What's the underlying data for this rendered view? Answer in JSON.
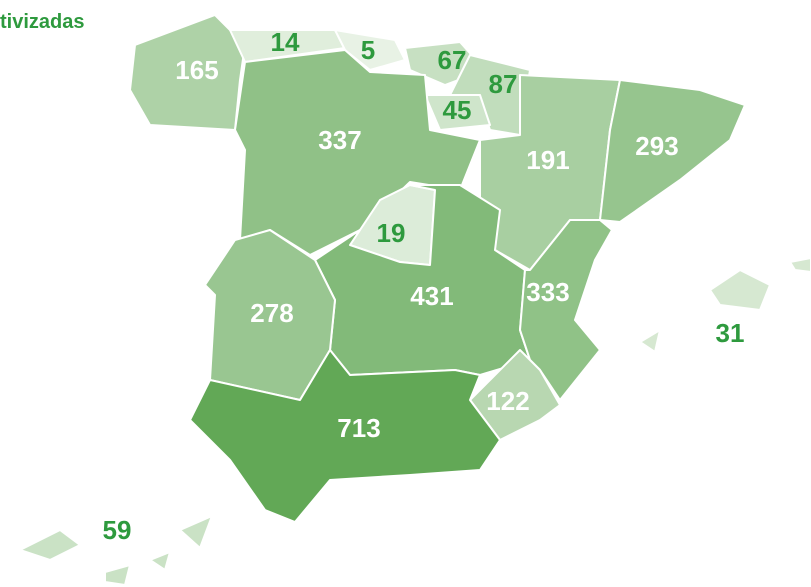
{
  "title": "tivizadas",
  "regions": [
    {
      "value": 165
    },
    {
      "value": 14
    },
    {
      "value": 5
    },
    {
      "value": 67
    },
    {
      "value": 87
    },
    {
      "value": 45
    },
    {
      "value": 337
    },
    {
      "value": 191
    },
    {
      "value": 293
    },
    {
      "value": 19
    },
    {
      "value": 431
    },
    {
      "value": 278
    },
    {
      "value": 333
    },
    {
      "value": 122
    },
    {
      "value": 713
    },
    {
      "value": 31
    },
    {
      "value": 59
    }
  ]
}
